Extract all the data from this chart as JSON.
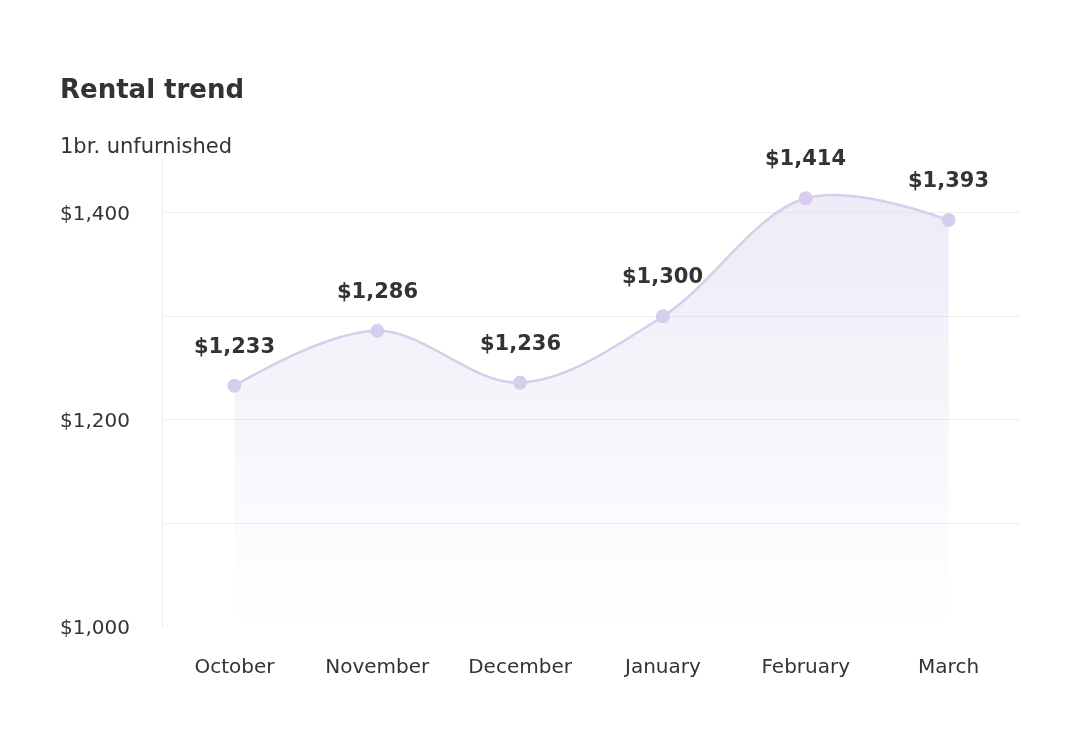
{
  "chart_data": {
    "type": "area",
    "title": "Rental trend",
    "subtitle": "1br. unfurnished",
    "categories": [
      "October",
      "November",
      "December",
      "January",
      "February",
      "March"
    ],
    "series": [
      {
        "color": "#d7cdec",
        "values": [
          1233,
          1286,
          1236,
          1300,
          1414,
          1393
        ],
        "value_labels": [
          "$1,233",
          "$1,286",
          "$1,236",
          "$1,300",
          "$1,414",
          "$1,393"
        ]
      }
    ],
    "ylim": [
      1000,
      1450
    ],
    "yticks": [
      {
        "value": 1000,
        "label": "$1,000"
      },
      {
        "value": 1100,
        "label": null
      },
      {
        "value": 1200,
        "label": "$1,200"
      },
      {
        "value": 1300,
        "label": null
      },
      {
        "value": 1400,
        "label": "$1,400"
      }
    ],
    "grid": "y",
    "marker": "circle",
    "line_style": "solid"
  }
}
